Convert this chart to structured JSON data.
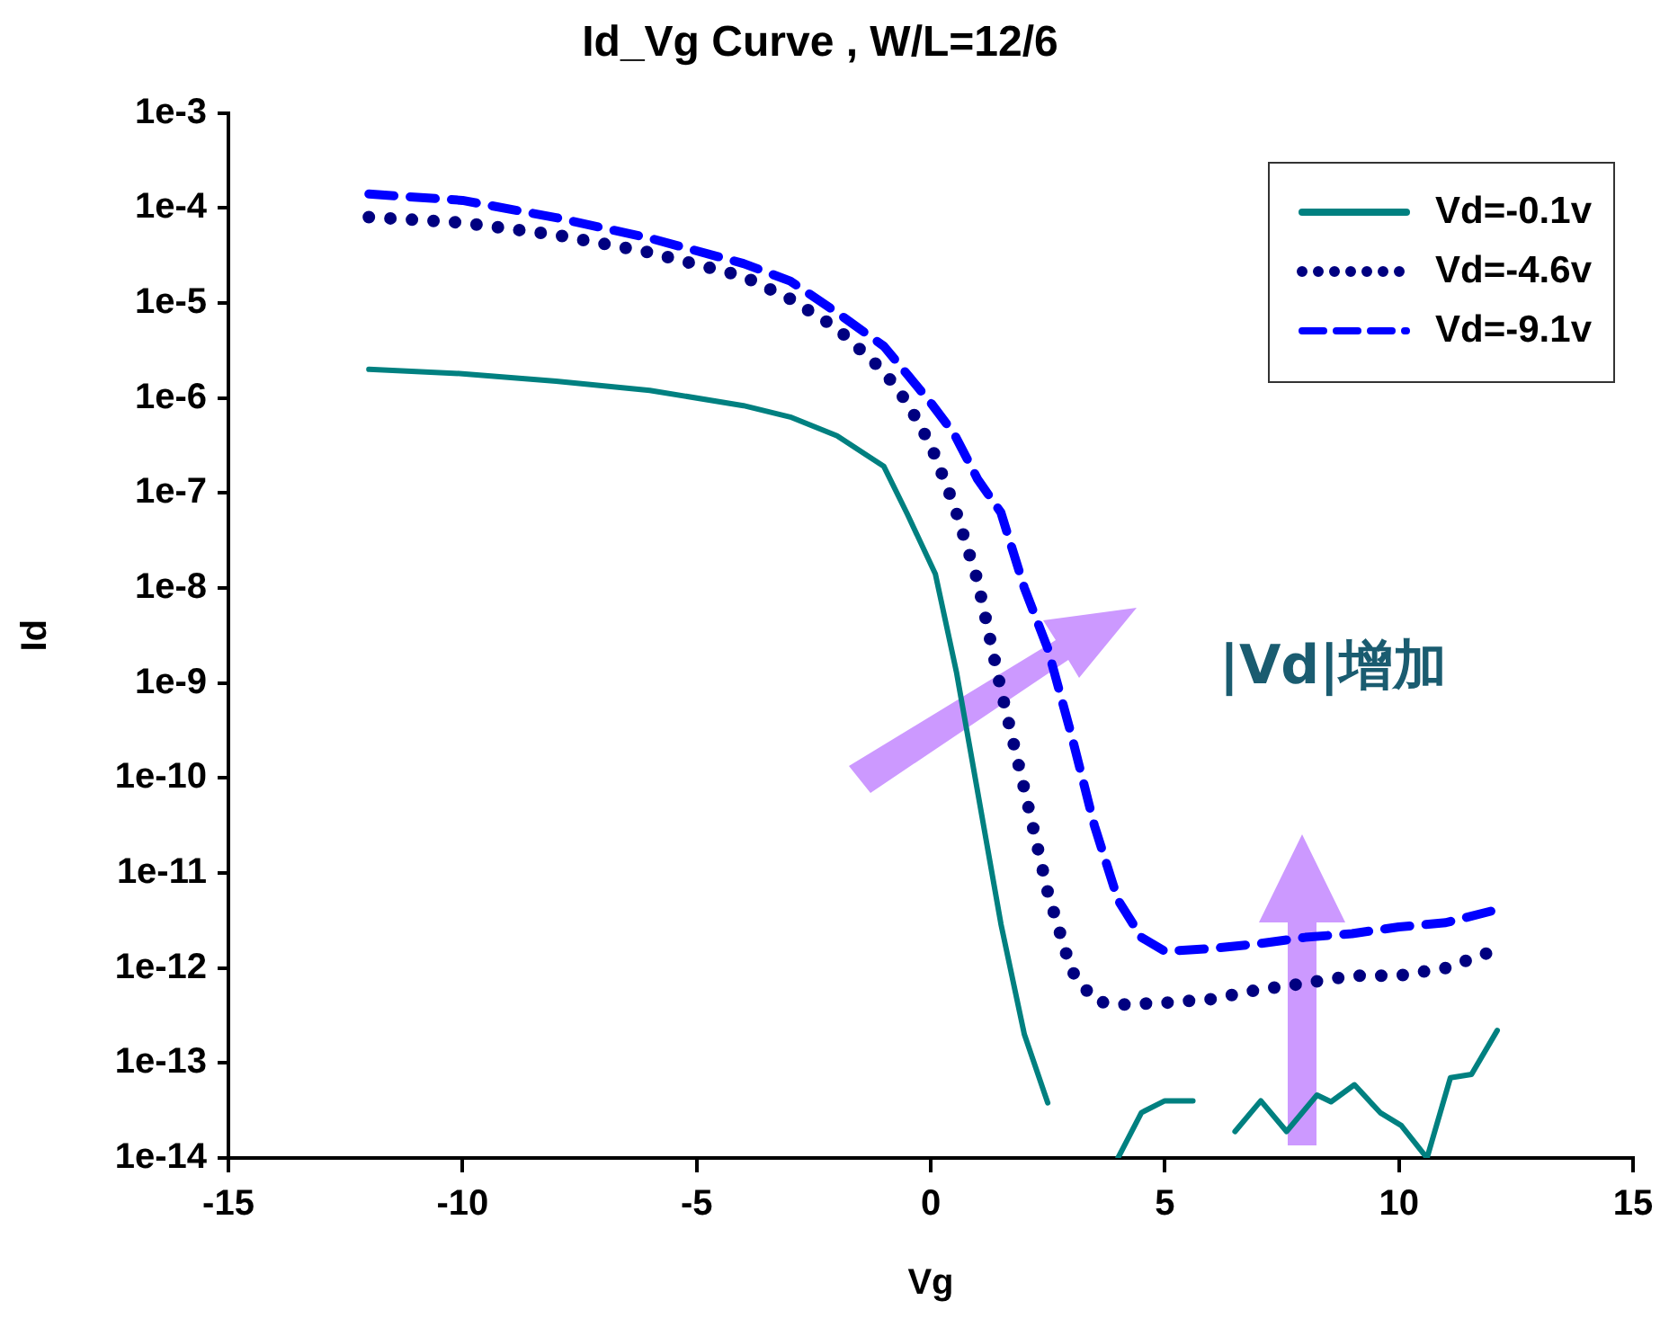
{
  "chart_data": {
    "type": "line",
    "title": "Id_Vg Curve , W/L=12/6",
    "xlabel": "Vg",
    "ylabel": "Id",
    "log": "y",
    "grid": false,
    "legend": "top right",
    "xlim": [
      -15,
      15
    ],
    "xticks": [
      -15,
      -10,
      -5,
      0,
      5,
      10,
      15
    ],
    "ylim": [
      1e-14,
      0.001
    ],
    "yticks": [
      {
        "value": 0.001,
        "label": "1e-3"
      },
      {
        "value": 0.0001,
        "label": "1e-4"
      },
      {
        "value": 1e-05,
        "label": "1e-5"
      },
      {
        "value": 1e-06,
        "label": "1e-6"
      },
      {
        "value": 1e-07,
        "label": "1e-7"
      },
      {
        "value": 1e-08,
        "label": "1e-8"
      },
      {
        "value": 1e-09,
        "label": "1e-9"
      },
      {
        "value": 1e-10,
        "label": "1e-10"
      },
      {
        "value": 1e-11,
        "label": "1e-11"
      },
      {
        "value": 1e-12,
        "label": "1e-12"
      },
      {
        "value": 1e-13,
        "label": "1e-13"
      },
      {
        "value": 1e-14,
        "label": "1e-14"
      }
    ],
    "annotations": [
      "|Vd|增加"
    ],
    "series": [
      {
        "name": "Vd=-0.1v",
        "color": "#008080",
        "line_style": "solid",
        "x": [
          -12,
          -10,
          -8,
          -6,
          -4,
          -3,
          -2,
          -1,
          -0.5,
          0.1,
          0.55,
          0.85,
          1.5,
          2,
          2.5,
          3,
          3.5,
          4,
          4.5,
          5,
          5.6,
          6,
          6.5,
          7.05,
          7.6,
          8.25,
          8.55,
          9.05,
          9.6,
          10.05,
          10.6,
          11.1,
          11.55,
          12.1
        ],
        "values": [
          2e-06,
          1.8e-06,
          1.5e-06,
          1.2e-06,
          8.3e-07,
          6.3e-07,
          4e-07,
          1.9e-07,
          6e-08,
          1.4e-08,
          1.3e-09,
          1.9e-10,
          2.9e-12,
          2e-13,
          3.8e-14,
          null,
          null,
          1e-14,
          3e-14,
          4e-14,
          4e-14,
          null,
          1.9e-14,
          4e-14,
          1.9e-14,
          4.6e-14,
          3.9e-14,
          5.9e-14,
          3e-14,
          2.2e-14,
          1e-14,
          7e-14,
          7.6e-14,
          2.2e-13
        ]
      },
      {
        "name": "Vd=-4.6v",
        "color": "#000080",
        "line_style": "dotted",
        "x": [
          -12,
          -10,
          -8,
          -6,
          -4,
          -3,
          -2,
          -1,
          -0.5,
          0,
          0.5,
          1,
          1.5,
          2,
          2.5,
          3,
          3.5,
          4,
          5,
          6,
          7,
          8,
          9,
          10,
          11,
          12
        ],
        "values": [
          8e-05,
          7e-05,
          5.2e-05,
          3.4e-05,
          1.9e-05,
          1.1e-05,
          5.4e-06,
          1.9e-06,
          8.9e-07,
          3.2e-07,
          7.4e-08,
          1.2e-08,
          8.5e-10,
          7.6e-11,
          6.3e-12,
          9.5e-13,
          4.5e-13,
          4.1e-13,
          4.3e-13,
          4.7e-13,
          5.9e-13,
          6.9e-13,
          8.3e-13,
          8.3e-13,
          1e-12,
          1.5e-12
        ]
      },
      {
        "name": "Vd=-9.1v",
        "color": "#0000ff",
        "line_style": "dashed",
        "x": [
          -12,
          -10,
          -8,
          -6,
          -4,
          -3,
          -2,
          -1,
          0,
          0.5,
          1,
          1.5,
          2,
          2.5,
          3,
          3.5,
          4,
          4.5,
          5,
          6,
          7,
          8,
          9,
          10,
          11,
          12
        ],
        "values": [
          0.00014,
          0.00012,
          7.9e-05,
          4.8e-05,
          2.6e-05,
          1.7e-05,
          7.9e-06,
          3.5e-06,
          8.9e-07,
          4.2e-07,
          1.4e-07,
          6.2e-08,
          1e-08,
          2.3e-09,
          2.9e-10,
          3.1e-11,
          5.2e-12,
          2.1e-12,
          1.5e-12,
          1.6e-12,
          1.8e-12,
          2.1e-12,
          2.3e-12,
          2.7e-12,
          3e-12,
          4e-12
        ]
      }
    ]
  }
}
